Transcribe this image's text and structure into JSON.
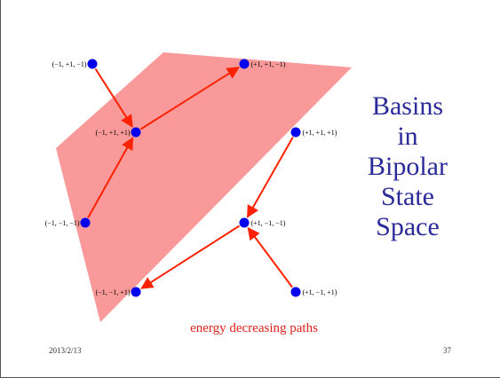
{
  "title_lines": [
    "Basins",
    "in",
    "Bipolar",
    "State",
    "Space"
  ],
  "caption": "energy decreasing paths",
  "footer": {
    "date": "2013/2/13",
    "page": "37"
  },
  "colors": {
    "basin": "#f87f7f",
    "node": "#0000ee",
    "arrow": "#ff2200",
    "title": "#2a2a9a",
    "caption": "#e0201a"
  },
  "nodes": [
    {
      "id": "n1",
      "label": "(−1, +1, −1)"
    },
    {
      "id": "n2",
      "label": "(+1, +1, −1)"
    },
    {
      "id": "n3",
      "label": "(−1, +1, +1)"
    },
    {
      "id": "n4",
      "label": "(+1, +1, +1)"
    },
    {
      "id": "n5",
      "label": "(−1, −1, −1)"
    },
    {
      "id": "n6",
      "label": "(+1, −1, −1)"
    },
    {
      "id": "n7",
      "label": "(−1, −1, +1)"
    },
    {
      "id": "n8",
      "label": "(+1, −1, +1)"
    }
  ],
  "edges": [
    {
      "from": "n1",
      "to": "n3"
    },
    {
      "from": "n3",
      "to": "n2"
    },
    {
      "from": "n5",
      "to": "n3"
    },
    {
      "from": "n4",
      "to": "n6"
    },
    {
      "from": "n8",
      "to": "n6"
    },
    {
      "from": "n6",
      "to": "n7"
    }
  ]
}
